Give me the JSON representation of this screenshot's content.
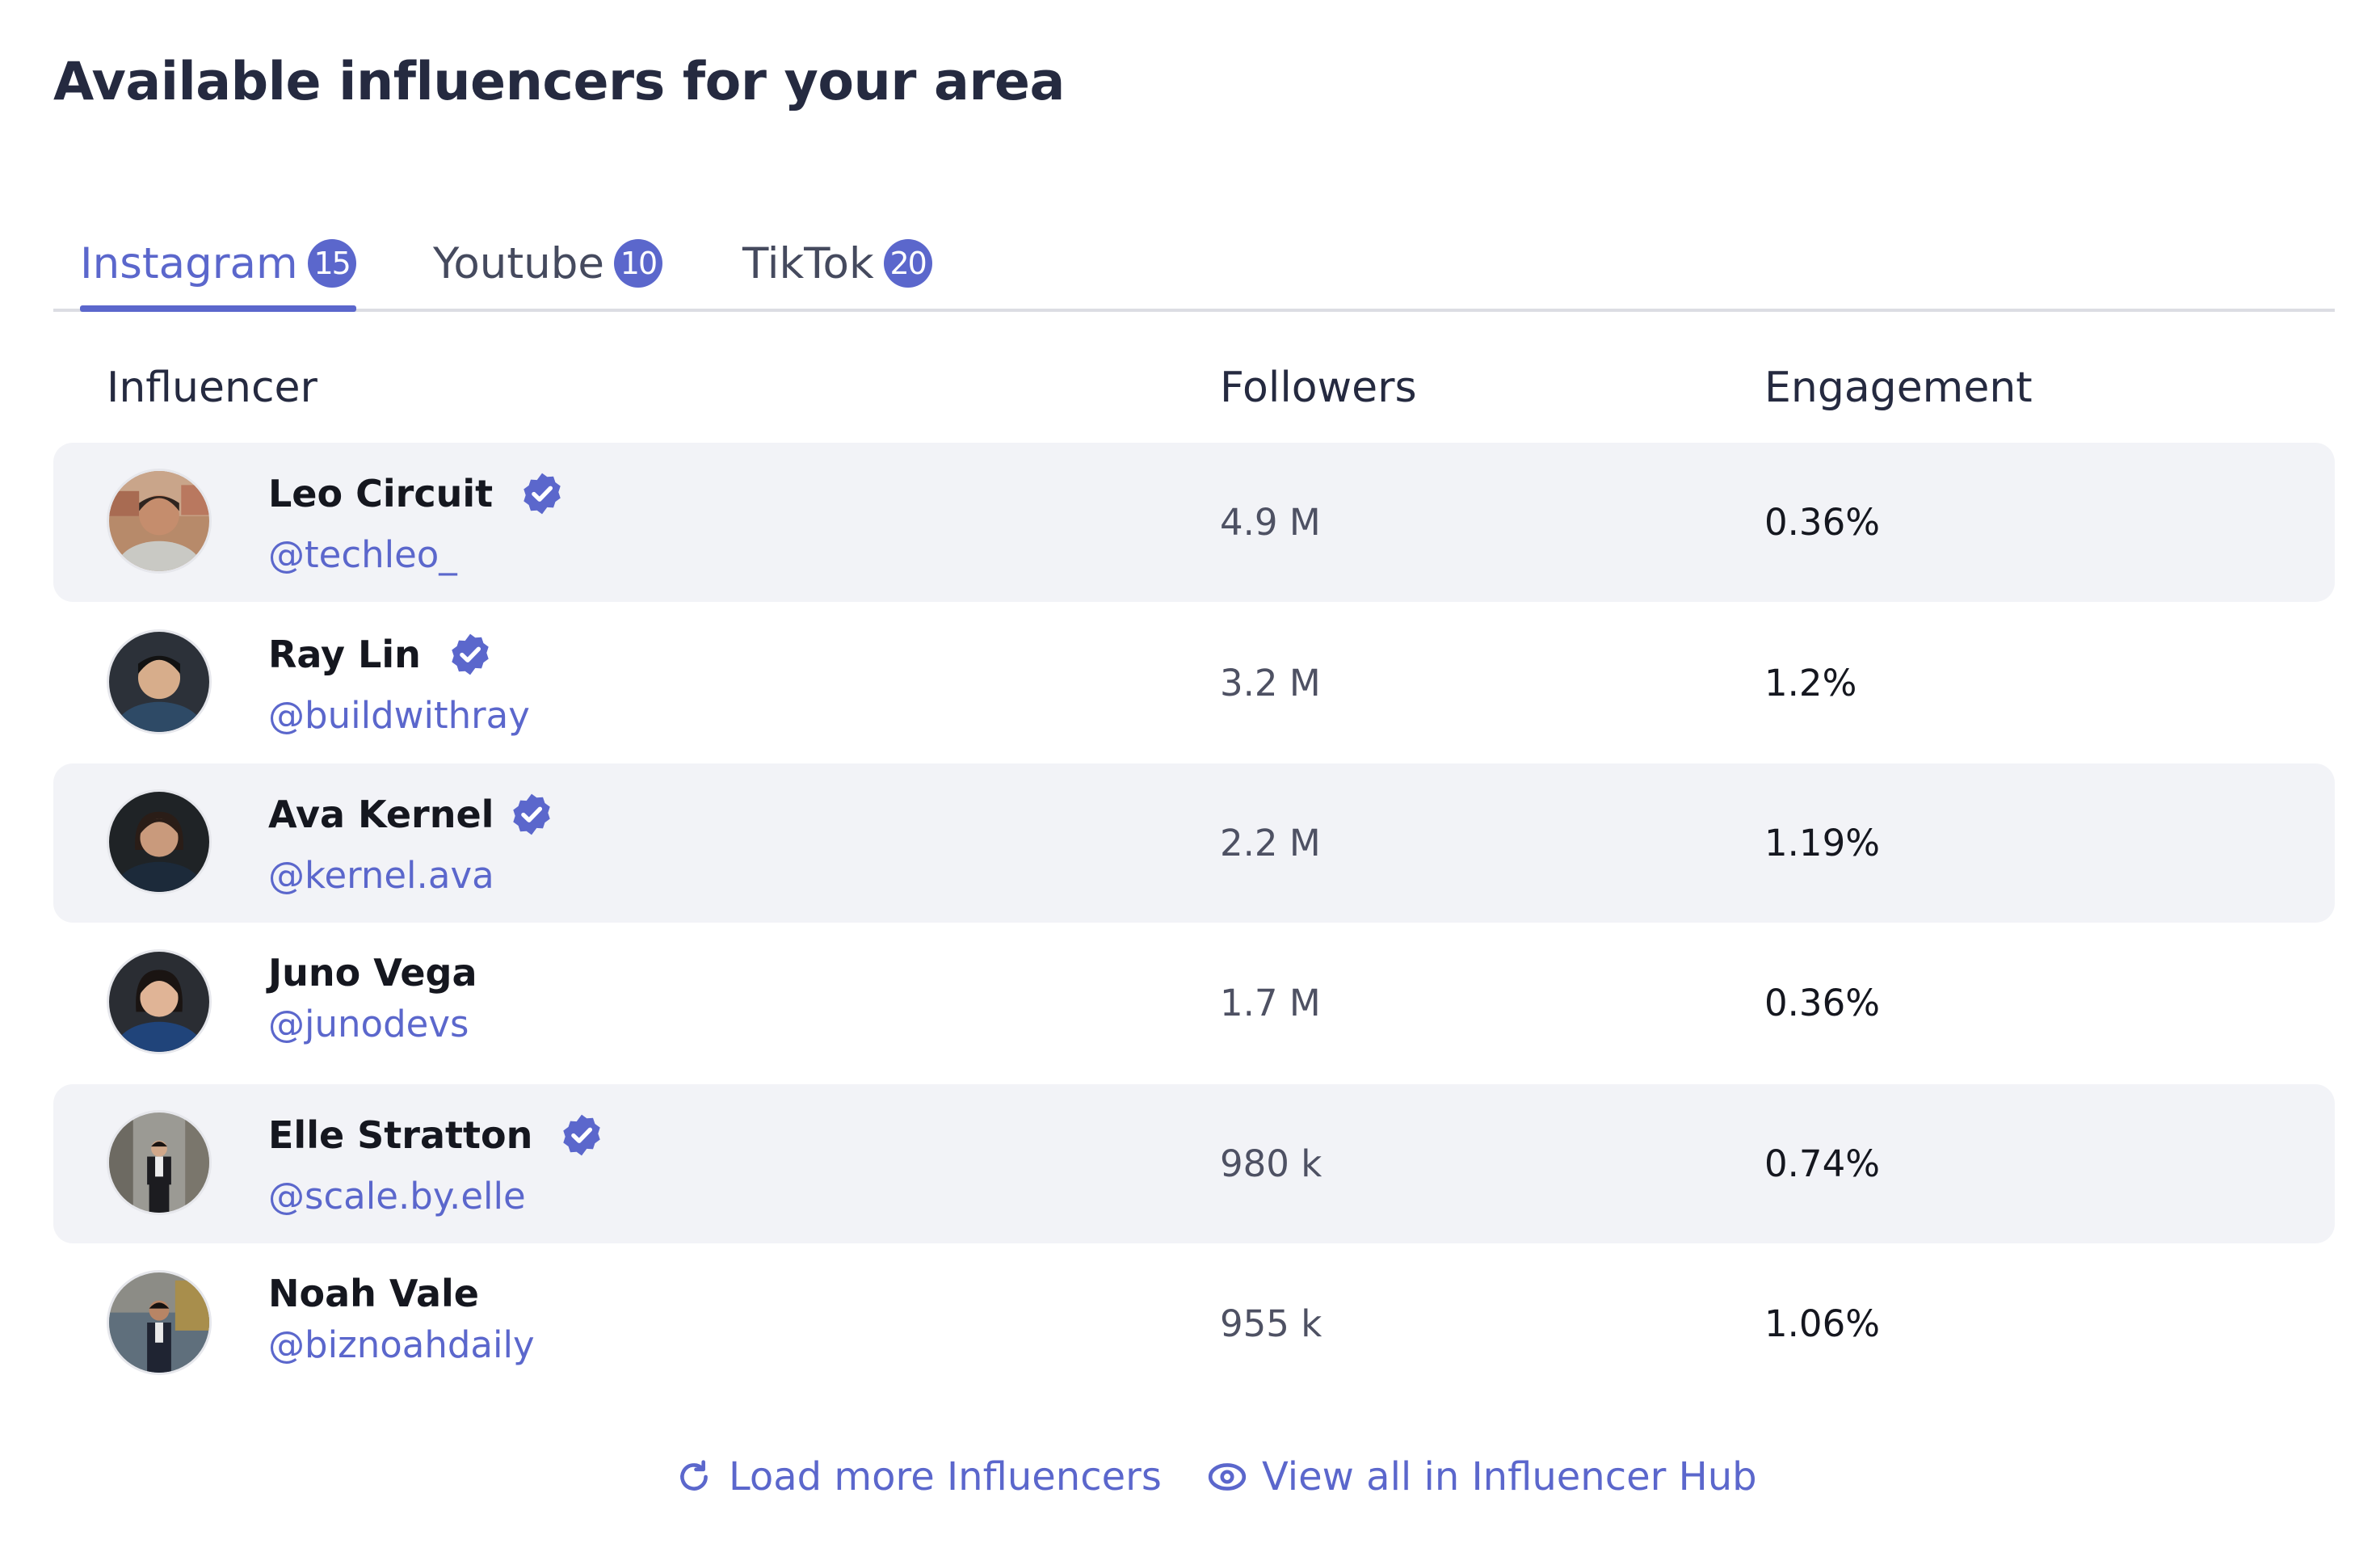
{
  "page_title": "Available influencers for your area",
  "tabs": [
    {
      "label": "Instagram",
      "count": "15",
      "active": true
    },
    {
      "label": "Youtube",
      "count": "10",
      "active": false
    },
    {
      "label": "TikTok",
      "count": "20",
      "active": false
    }
  ],
  "table": {
    "headers": {
      "influencer": "Influencer",
      "followers": "Followers",
      "engagement": "Engagement"
    },
    "rows": [
      {
        "name": "Leo Circuit",
        "handle": "@techleo_",
        "verified": true,
        "followers": "4.9 M",
        "engagement": "0.36%"
      },
      {
        "name": "Ray Lin",
        "handle": "@buildwithray",
        "verified": true,
        "followers": "3.2 M",
        "engagement": "1.2%"
      },
      {
        "name": "Ava Kernel",
        "handle": "@kernel.ava",
        "verified": true,
        "followers": "2.2 M",
        "engagement": "1.19%"
      },
      {
        "name": "Juno Vega",
        "handle": "@junodevs",
        "verified": false,
        "followers": "1.7 M",
        "engagement": "0.36%"
      },
      {
        "name": "Elle Stratton",
        "handle": "@scale.by.elle",
        "verified": true,
        "followers": "980 k",
        "engagement": "0.74%"
      },
      {
        "name": "Noah Vale",
        "handle": "@biznoahdaily",
        "verified": false,
        "followers": "955 k",
        "engagement": "1.06%"
      }
    ]
  },
  "actions": {
    "load_more": "Load more Influencers",
    "view_all": "View all in Influencer Hub"
  },
  "icons": {
    "verified": "verified-badge-icon",
    "load_more": "refresh-icon",
    "view_all": "eye-icon"
  },
  "colors": {
    "accent": "#5b67cc",
    "title": "#252a40",
    "row_shade": "#f2f3f7",
    "divider": "#dcdde3"
  }
}
